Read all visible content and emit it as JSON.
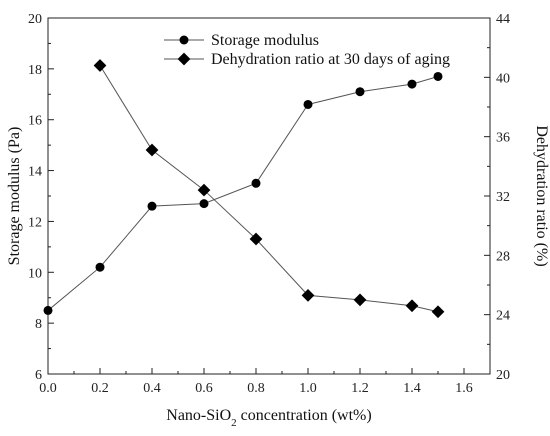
{
  "chart_data": {
    "type": "line",
    "xlabel": {
      "prefix": "Nano-SiO",
      "sub": "2",
      "suffix": " concentration (wt%)"
    },
    "ylabel_left": "Storage modulus (Pa)",
    "ylabel_right": "Dehydration ratio (%)",
    "xlim": [
      0.0,
      1.7
    ],
    "ylim_left": [
      6,
      20
    ],
    "ylim_right": [
      20,
      44
    ],
    "x_ticks": [
      "0.0",
      "0.2",
      "0.4",
      "0.6",
      "0.8",
      "1.0",
      "1.2",
      "1.4",
      "1.6"
    ],
    "y_left_ticks": [
      "6",
      "8",
      "10",
      "12",
      "14",
      "16",
      "18",
      "20"
    ],
    "y_right_ticks": [
      "20",
      "24",
      "28",
      "32",
      "36",
      "40",
      "44"
    ],
    "legend_position": "top-right",
    "series": [
      {
        "name": "Storage modulus",
        "axis": "left",
        "marker": "circle",
        "x": [
          0.0,
          0.2,
          0.4,
          0.6,
          0.8,
          1.0,
          1.2,
          1.4,
          1.5
        ],
        "y": [
          8.5,
          10.2,
          12.6,
          12.7,
          13.5,
          16.6,
          17.1,
          17.4,
          17.7
        ]
      },
      {
        "name": "Dehydration ratio at 30 days of aging",
        "axis": "right",
        "marker": "diamond",
        "x": [
          0.2,
          0.4,
          0.6,
          0.8,
          1.0,
          1.2,
          1.4,
          1.5
        ],
        "y": [
          40.8,
          35.1,
          32.4,
          29.1,
          25.3,
          25.0,
          24.6,
          24.2
        ]
      }
    ]
  }
}
